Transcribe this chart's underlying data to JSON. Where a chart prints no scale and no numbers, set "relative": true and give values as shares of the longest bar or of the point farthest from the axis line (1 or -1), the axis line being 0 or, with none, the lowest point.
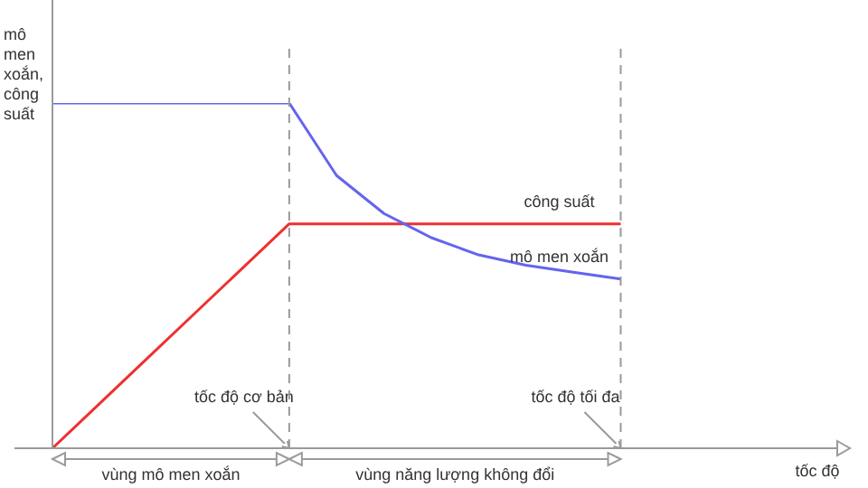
{
  "chart_data": {
    "type": "line",
    "relative": true,
    "ylabel": "mô men xoắn, công suất",
    "xlabel": "tốc độ",
    "categories": [
      null,
      null,
      null,
      null,
      null,
      null,
      null,
      null,
      null,
      null,
      null,
      null,
      null,
      null,
      null,
      null,
      null
    ],
    "series": [
      {
        "name": "mô men xoắn",
        "color": "#6464ee",
        "values": [
          1,
          1,
          1,
          1,
          1,
          1,
          0.79,
          0.68,
          0.61,
          0.56,
          0.53,
          0.51,
          0.49,
          null,
          null,
          null,
          null
        ]
      },
      {
        "name": "công suất",
        "color": "#ee3030",
        "values": [
          0,
          0.13,
          0.26,
          0.39,
          0.52,
          0.65,
          0.65,
          0.65,
          0.65,
          0.65,
          0.65,
          0.65,
          0.65,
          null,
          null,
          null,
          null
        ]
      }
    ],
    "annotations": [
      "tốc độ cơ bản",
      "tốc độ tối đa",
      "vùng mô men xoắn",
      "vùng năng lượng không đổi"
    ],
    "grid": false,
    "legend": false,
    "marker": "none",
    "line_style": "solid"
  }
}
